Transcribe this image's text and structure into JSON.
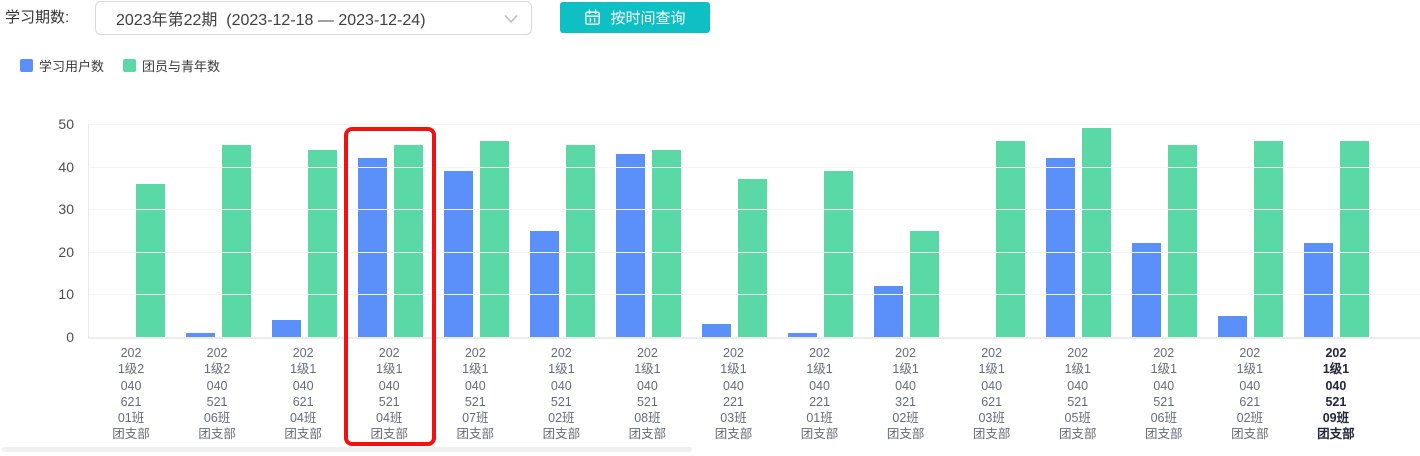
{
  "filter": {
    "label": "学习期数:",
    "select_value": "2023年第22期  (2023-12-18 — 2023-12-24)",
    "query_button": "按时间查询"
  },
  "legend": {
    "items": [
      {
        "label": "学习用户数",
        "color": "#5b8ff9"
      },
      {
        "label": "团员与青年数",
        "color": "#5ad8a6"
      }
    ]
  },
  "chart_data": {
    "type": "bar",
    "categories": [
      "2021级204062101班团支部",
      "2021级204052106班团支部",
      "2021级104062104班团支部",
      "2021级104052104班团支部",
      "2021级104052107班团支部",
      "2021级104052102班团支部",
      "2021级104052108班团支部",
      "2021级104022103班团支部",
      "2021级104022101班团支部",
      "2021级104032102班团支部",
      "2021级104062103班团支部",
      "2021级104052105班团支部",
      "2021级104052106班团支部",
      "2021级104062102班团支部",
      "2021级104052109班团支部"
    ],
    "series": [
      {
        "name": "学习用户数",
        "key": "study-users",
        "color": "#5b8ff9",
        "values": [
          0,
          1,
          4,
          42,
          39,
          25,
          43,
          3,
          1,
          12,
          0,
          42,
          22,
          5,
          22
        ]
      },
      {
        "name": "团员与青年数",
        "key": "members-and-youth",
        "color": "#5ad8a6",
        "values": [
          36,
          45,
          44,
          45,
          46,
          45,
          44,
          37,
          39,
          25,
          46,
          49,
          45,
          46,
          46
        ]
      }
    ],
    "ylim": [
      0,
      50
    ],
    "yticks": [
      0,
      10,
      20,
      30,
      40,
      50
    ],
    "grid": true,
    "legend_position": "top-left",
    "label_wrap_chars": 3,
    "highlight_index": 3,
    "highlight_color": "#f50f0f",
    "bold_category_index": 14
  }
}
